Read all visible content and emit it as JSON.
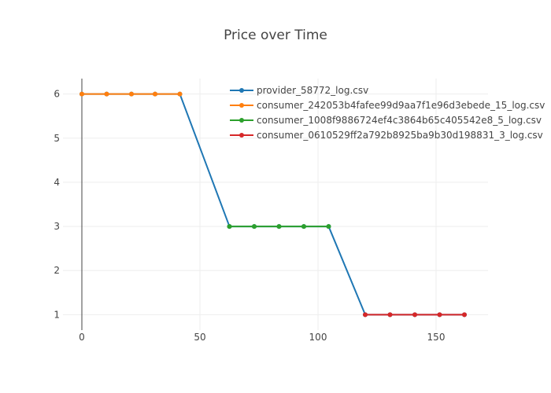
{
  "chart_data": {
    "type": "line",
    "title": "Price over Time",
    "xlabel": "",
    "ylabel": "",
    "xlim": [
      -8,
      172
    ],
    "ylim": [
      0.65,
      6.35
    ],
    "x_ticks": [
      0,
      50,
      100,
      150
    ],
    "y_ticks": [
      1,
      2,
      3,
      4,
      5,
      6
    ],
    "grid": true,
    "legend_position": "top-right",
    "series": [
      {
        "name": "provider_58772_log.csv",
        "color": "#1f77b4",
        "x": [
          0,
          10.5,
          21,
          31,
          41.5,
          62.5,
          73,
          83.5,
          94,
          104.5,
          120,
          130.5,
          141,
          151.5,
          162
        ],
        "y": [
          6,
          6,
          6,
          6,
          6,
          3,
          3,
          3,
          3,
          3,
          1,
          1,
          1,
          1,
          1
        ]
      },
      {
        "name": "consumer_242053b4fafee99d9aa7f1e96d3ebede_15_log.csv",
        "color": "#ff7f0e",
        "x": [
          0,
          10.5,
          21,
          31,
          41.5
        ],
        "y": [
          6,
          6,
          6,
          6,
          6
        ]
      },
      {
        "name": "consumer_1008f9886724ef4c3864b65c405542e8_5_log.csv",
        "color": "#2ca02c",
        "x": [
          62.5,
          73,
          83.5,
          94,
          104.5
        ],
        "y": [
          3,
          3,
          3,
          3,
          3
        ]
      },
      {
        "name": "consumer_0610529ff2a792b8925ba9b30d198831_3_log.csv",
        "color": "#d62728",
        "x": [
          120,
          130.5,
          141,
          151.5,
          162
        ],
        "y": [
          1,
          1,
          1,
          1,
          1
        ]
      }
    ]
  }
}
